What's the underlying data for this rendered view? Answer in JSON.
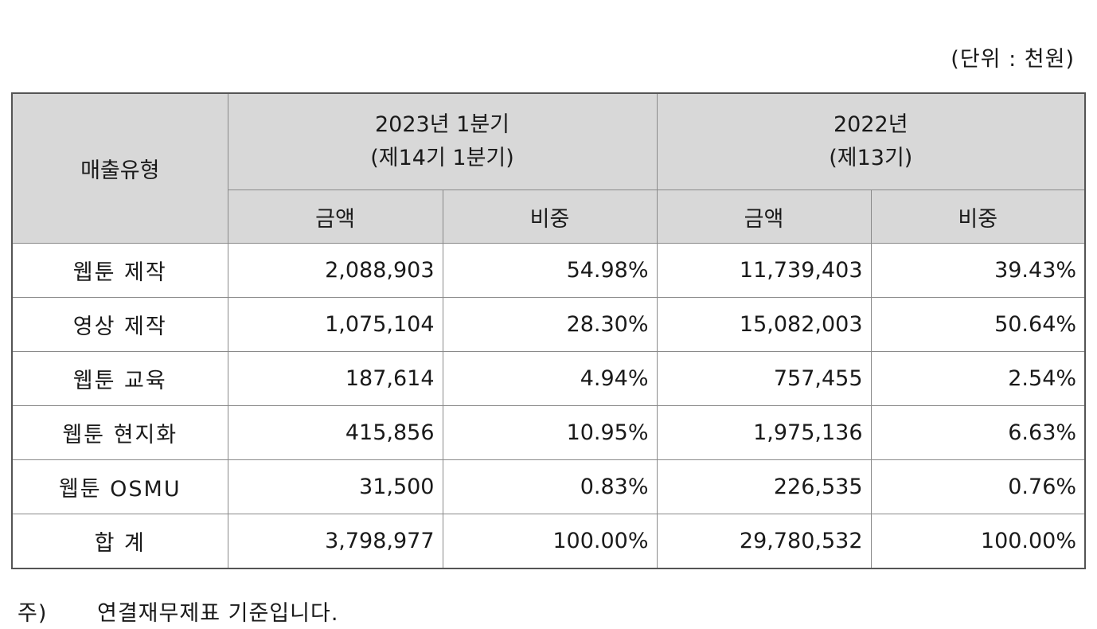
{
  "unit_label": "(단위 : 천원)",
  "table": {
    "header": {
      "type_col": "매출유형",
      "period1": {
        "line1": "2023년 1분기",
        "line2": "(제14기 1분기)"
      },
      "period2": {
        "line1": "2022년",
        "line2": "(제13기)"
      },
      "amount": "금액",
      "ratio": "비중"
    },
    "rows": [
      {
        "type": "웹툰 제작",
        "amount_2023q1": "2,088,903",
        "ratio_2023q1": "54.98%",
        "amount_2022": "11,739,403",
        "ratio_2022": "39.43%"
      },
      {
        "type": "영상 제작",
        "amount_2023q1": "1,075,104",
        "ratio_2023q1": "28.30%",
        "amount_2022": "15,082,003",
        "ratio_2022": "50.64%"
      },
      {
        "type": "웹툰 교육",
        "amount_2023q1": "187,614",
        "ratio_2023q1": "4.94%",
        "amount_2022": "757,455",
        "ratio_2022": "2.54%"
      },
      {
        "type": "웹툰 현지화",
        "amount_2023q1": "415,856",
        "ratio_2023q1": "10.95%",
        "amount_2022": "1,975,136",
        "ratio_2022": "6.63%"
      },
      {
        "type": "웹툰 OSMU",
        "amount_2023q1": "31,500",
        "ratio_2023q1": "0.83%",
        "amount_2022": "226,535",
        "ratio_2022": "0.76%"
      },
      {
        "type": "합 계",
        "amount_2023q1": "3,798,977",
        "ratio_2023q1": "100.00%",
        "amount_2022": "29,780,532",
        "ratio_2022": "100.00%"
      }
    ]
  },
  "note": {
    "mark": "주)",
    "text": "연결재무제표 기준입니다."
  }
}
